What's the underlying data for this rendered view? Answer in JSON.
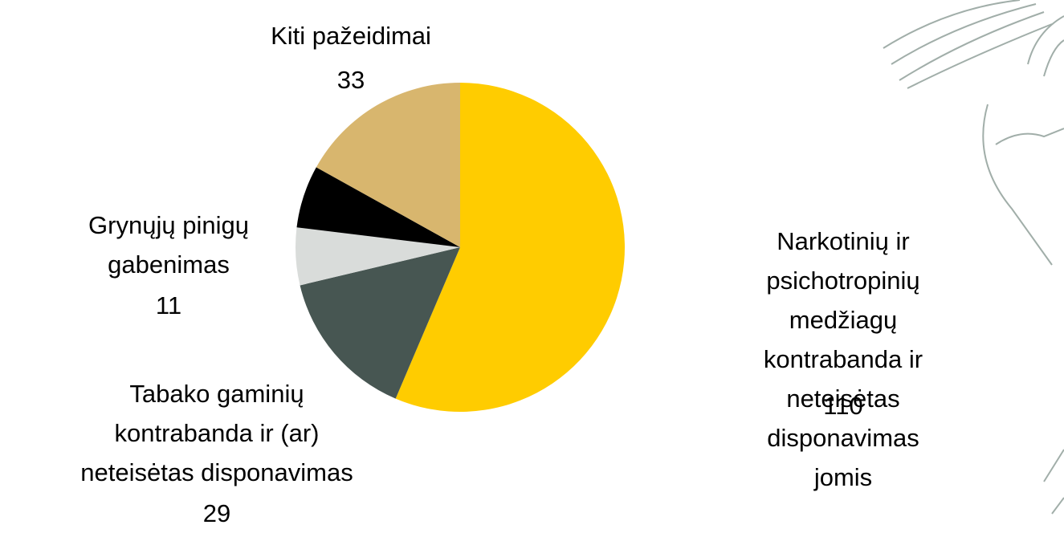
{
  "chart_data": {
    "type": "pie",
    "categories": [
      "Narkotinių ir psichotropinių\nmedžiagų kontrabanda ir\nneteisėtas disponavimas\njomis",
      "Tabako gaminių\nkontrabanda ir (ar)\nneteisėtas disponavimas",
      "Grynųjų pinigų\ngabenimas",
      null,
      "Kiti pažeidimai"
    ],
    "values": [
      110,
      29,
      11,
      12,
      33
    ],
    "colors": [
      "#FFCC00",
      "#475652",
      "#D9DCDA",
      "#000000",
      "#D8B66E"
    ]
  }
}
